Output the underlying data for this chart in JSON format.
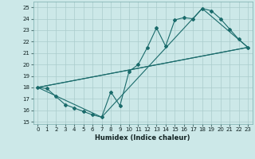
{
  "xlabel": "Humidex (Indice chaleur)",
  "bg_color": "#cce8e8",
  "grid_color": "#aacccc",
  "line_color": "#1a6b6b",
  "xlim": [
    -0.5,
    23.5
  ],
  "ylim": [
    14.8,
    25.5
  ],
  "yticks": [
    15,
    16,
    17,
    18,
    19,
    20,
    21,
    22,
    23,
    24,
    25
  ],
  "xticks": [
    0,
    1,
    2,
    3,
    4,
    5,
    6,
    7,
    8,
    9,
    10,
    11,
    12,
    13,
    14,
    15,
    16,
    17,
    18,
    19,
    20,
    21,
    22,
    23
  ],
  "main_x": [
    0,
    1,
    2,
    3,
    4,
    5,
    6,
    7,
    8,
    9,
    10,
    11,
    12,
    13,
    14,
    15,
    16,
    17,
    18,
    19,
    20,
    21,
    22,
    23
  ],
  "main_y": [
    18.0,
    17.9,
    17.2,
    16.5,
    16.2,
    15.9,
    15.6,
    15.4,
    17.6,
    16.4,
    19.4,
    20.0,
    21.5,
    23.2,
    21.6,
    23.9,
    24.1,
    24.0,
    24.9,
    24.7,
    24.0,
    23.1,
    22.2,
    21.5
  ],
  "line2_x": [
    0,
    23
  ],
  "line2_y": [
    18.0,
    21.5
  ],
  "line3_x": [
    0,
    7,
    18,
    23
  ],
  "line3_y": [
    18.0,
    15.4,
    24.9,
    21.5
  ],
  "xlabel_fontsize": 6.0,
  "tick_fontsize": 5.0
}
